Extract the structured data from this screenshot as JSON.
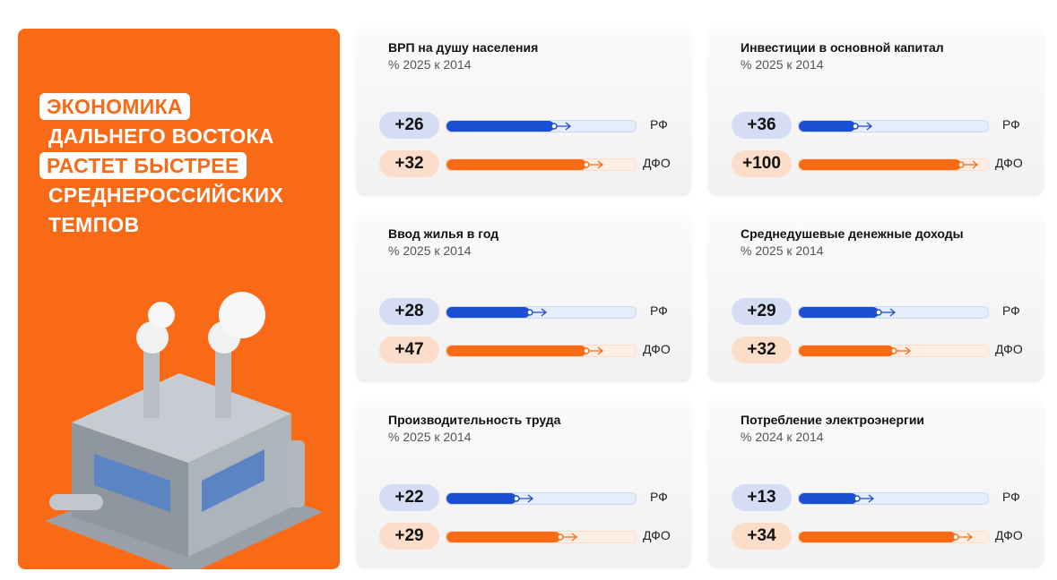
{
  "headline": {
    "lines": [
      "ЭКОНОМИКА",
      "ДАЛЬНЕГО ВОСТОКА",
      "РАСТЕТ БЫСТРЕЕ",
      "СРЕДНЕРОССИЙСКИХ",
      "ТЕМПОВ"
    ]
  },
  "colors": {
    "orange": "#F96A16",
    "blue": "#1D4FD3",
    "pill_blue": "#D4DDF3",
    "pill_orange": "#FCDDC9",
    "track_blue": "#E5ECFB",
    "track_orange": "#FDEEE4"
  },
  "chart_data": {
    "type": "bar",
    "series_labels": [
      "РФ",
      "ДФО"
    ],
    "panels": [
      {
        "title": "ВРП на душу населения",
        "subtitle": "% 2025 к 2014",
        "rf": "+26",
        "dfo": "+32",
        "rf_fill": 0.57,
        "dfo_fill": 0.74
      },
      {
        "title": "Инвестиции в основной капитал",
        "subtitle": "% 2025 к 2014",
        "rf": "+36",
        "dfo": "+100",
        "rf_fill": 0.3,
        "dfo_fill": 0.86
      },
      {
        "title": "Ввод жилья в год",
        "subtitle": "% 2025 к 2014",
        "rf": "+28",
        "dfo": "+47",
        "rf_fill": 0.44,
        "dfo_fill": 0.74
      },
      {
        "title": "Среднедушевые денежные доходы",
        "subtitle": "% 2025 к 2014",
        "rf": "+29",
        "dfo": "+32",
        "rf_fill": 0.42,
        "dfo_fill": 0.5
      },
      {
        "title": "Производительность труда",
        "subtitle": "% 2025 к 2014",
        "rf": "+22",
        "dfo": "+29",
        "rf_fill": 0.37,
        "dfo_fill": 0.6
      },
      {
        "title": "Потребление электроэнергии",
        "subtitle": "% 2024 к 2014",
        "rf": "+13",
        "dfo": "+34",
        "rf_fill": 0.31,
        "dfo_fill": 0.83
      }
    ]
  }
}
